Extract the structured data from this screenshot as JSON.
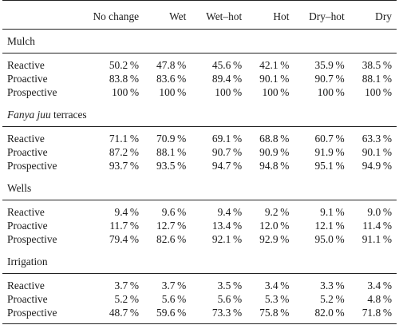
{
  "table": {
    "columns": [
      "",
      "No change",
      "Wet",
      "Wet–hot",
      "Hot",
      "Dry–hot",
      "Dry"
    ],
    "sections": [
      {
        "title": "Mulch",
        "italic": false,
        "rows": [
          {
            "label": "Reactive",
            "values": [
              "50.2 %",
              "47.8 %",
              "45.6 %",
              "42.1 %",
              "35.9 %",
              "38.5 %"
            ]
          },
          {
            "label": "Proactive",
            "values": [
              "83.8 %",
              "83.6 %",
              "89.4 %",
              "90.1 %",
              "90.7 %",
              "88.1 %"
            ]
          },
          {
            "label": "Prospective",
            "values": [
              "100 %",
              "100 %",
              "100 %",
              "100 %",
              "100 %",
              "100 %"
            ]
          }
        ]
      },
      {
        "title_italic": "Fanya juu",
        "title_rest": " terraces",
        "italic": true,
        "rows": [
          {
            "label": "Reactive",
            "values": [
              "71.1 %",
              "70.9 %",
              "69.1 %",
              "68.8 %",
              "60.7 %",
              "63.3 %"
            ]
          },
          {
            "label": "Proactive",
            "values": [
              "87.2 %",
              "88.1 %",
              "90.7 %",
              "90.9 %",
              "91.9 %",
              "90.1 %"
            ]
          },
          {
            "label": "Prospective",
            "values": [
              "93.7 %",
              "93.5 %",
              "94.7 %",
              "94.8 %",
              "95.1 %",
              "94.9 %"
            ]
          }
        ]
      },
      {
        "title": "Wells",
        "italic": false,
        "rows": [
          {
            "label": "Reactive",
            "values": [
              "9.4 %",
              "9.6 %",
              "9.4 %",
              "9.2 %",
              "9.1 %",
              "9.0 %"
            ]
          },
          {
            "label": "Proactive",
            "values": [
              "11.7 %",
              "12.7 %",
              "13.4 %",
              "12.0 %",
              "12.1 %",
              "11.4 %"
            ]
          },
          {
            "label": "Prospective",
            "values": [
              "79.4 %",
              "82.6 %",
              "92.1 %",
              "92.9 %",
              "95.0 %",
              "91.1 %"
            ]
          }
        ]
      },
      {
        "title": "Irrigation",
        "italic": false,
        "rows": [
          {
            "label": "Reactive",
            "values": [
              "3.7 %",
              "3.7 %",
              "3.5 %",
              "3.4 %",
              "3.3 %",
              "3.4 %"
            ]
          },
          {
            "label": "Proactive",
            "values": [
              "5.2 %",
              "5.6 %",
              "5.6 %",
              "5.3 %",
              "5.2 %",
              "4.8 %"
            ]
          },
          {
            "label": "Prospective",
            "values": [
              "48.7 %",
              "59.6 %",
              "73.3 %",
              "75.8 %",
              "82.0 %",
              "71.8 %"
            ]
          }
        ]
      }
    ]
  }
}
